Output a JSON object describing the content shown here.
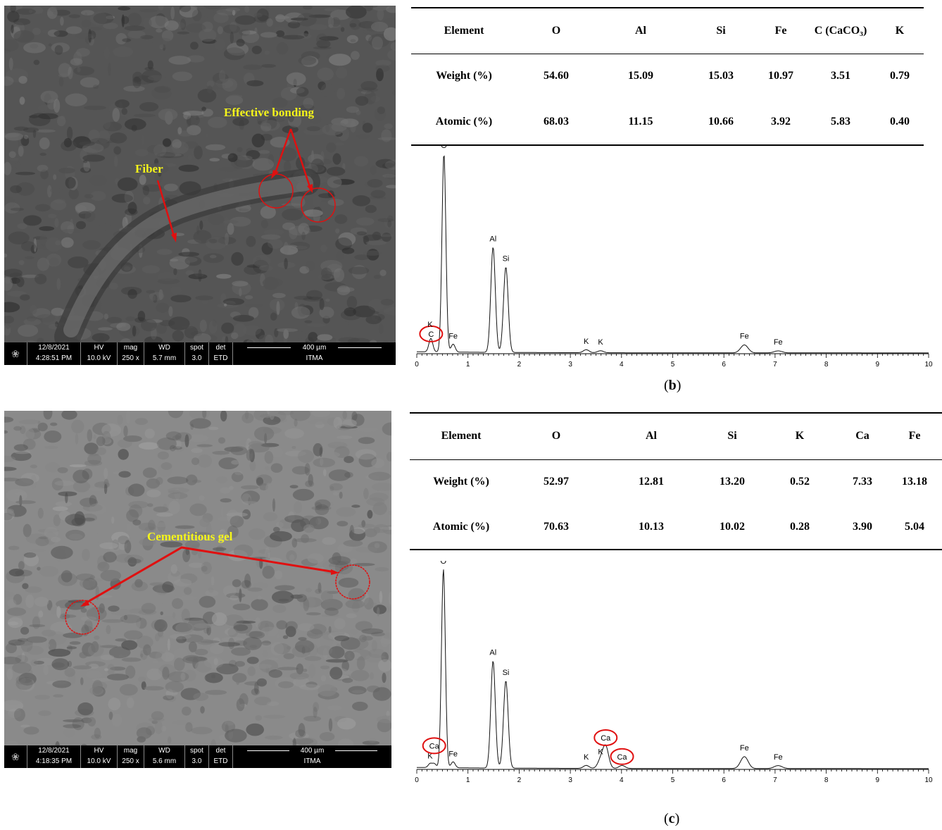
{
  "panel_b": {
    "caption_letter": "b",
    "sem": {
      "date": "12/8/2021",
      "time": "4:28:51 PM",
      "hv_label": "HV",
      "hv": "10.0 kV",
      "mag_label": "mag",
      "mag": "250 x",
      "wd_label": "WD",
      "wd": "5.7 mm",
      "spot_label": "spot",
      "spot": "3.0",
      "det_label": "det",
      "det": "ETD",
      "scale": "400 µm",
      "lab": "ITMA",
      "annotations": [
        "Effective bonding",
        "Fiber"
      ]
    },
    "table": {
      "headers": [
        "Element",
        "O",
        "Al",
        "Si",
        "Fe",
        "C (CaCO₃)",
        "K"
      ],
      "rows": [
        [
          "Weight (%)",
          "54.60",
          "15.09",
          "15.03",
          "10.97",
          "3.51",
          "0.79"
        ],
        [
          "Atomic (%)",
          "68.03",
          "11.15",
          "10.66",
          "3.92",
          "5.83",
          "0.40"
        ]
      ]
    },
    "spectrum": {
      "x_ticks": [
        "0",
        "1",
        "2",
        "3",
        "4",
        "5",
        "6",
        "7",
        "8",
        "9",
        "10"
      ],
      "xlim": [
        0,
        10
      ],
      "peaks": [
        {
          "label": "C",
          "x": 0.28,
          "h": 0.05,
          "circled": true
        },
        {
          "label": "K",
          "x": 0.26,
          "h": 0.02,
          "circled": false
        },
        {
          "label": "O",
          "x": 0.53,
          "h": 1.0,
          "circled": false
        },
        {
          "label": "Fe",
          "x": 0.71,
          "h": 0.04,
          "circled": false
        },
        {
          "label": "Al",
          "x": 1.49,
          "h": 0.53,
          "circled": false
        },
        {
          "label": "Si",
          "x": 1.74,
          "h": 0.43,
          "circled": false
        },
        {
          "label": "K",
          "x": 3.31,
          "h": 0.015,
          "circled": false
        },
        {
          "label": "K",
          "x": 3.59,
          "h": 0.01,
          "circled": false
        },
        {
          "label": "Fe",
          "x": 6.4,
          "h": 0.04,
          "circled": false
        },
        {
          "label": "Fe",
          "x": 7.06,
          "h": 0.01,
          "circled": false
        }
      ]
    }
  },
  "panel_c": {
    "caption_letter": "c",
    "sem": {
      "date": "12/8/2021",
      "time": "4:18:35 PM",
      "hv_label": "HV",
      "hv": "10.0 kV",
      "mag_label": "mag",
      "mag": "250 x",
      "wd_label": "WD",
      "wd": "5.6 mm",
      "spot_label": "spot",
      "spot": "3.0",
      "det_label": "det",
      "det": "ETD",
      "scale": "400 µm",
      "lab": "ITMA",
      "annotations": [
        "Cementitious gel"
      ]
    },
    "table": {
      "headers": [
        "Element",
        "O",
        "Al",
        "Si",
        "K",
        "Ca",
        "Fe"
      ],
      "rows": [
        [
          "Weight (%)",
          "52.97",
          "12.81",
          "13.20",
          "0.52",
          "7.33",
          "13.18"
        ],
        [
          "Atomic (%)",
          "70.63",
          "10.13",
          "10.02",
          "0.28",
          "3.90",
          "5.04"
        ]
      ]
    },
    "spectrum": {
      "x_ticks": [
        "0",
        "1",
        "2",
        "3",
        "4",
        "5",
        "6",
        "7",
        "8",
        "9",
        "10"
      ],
      "xlim": [
        0,
        10
      ],
      "peaks": [
        {
          "label": "K",
          "x": 0.26,
          "h": 0.02,
          "circled": false
        },
        {
          "label": "Ca",
          "x": 0.34,
          "h": 0.02,
          "circled": true
        },
        {
          "label": "O",
          "x": 0.52,
          "h": 1.0,
          "circled": false
        },
        {
          "label": "Fe",
          "x": 0.71,
          "h": 0.03,
          "circled": false
        },
        {
          "label": "Al",
          "x": 1.49,
          "h": 0.54,
          "circled": false
        },
        {
          "label": "Si",
          "x": 1.74,
          "h": 0.44,
          "circled": false
        },
        {
          "label": "K",
          "x": 3.31,
          "h": 0.015,
          "circled": false
        },
        {
          "label": "K",
          "x": 3.59,
          "h": 0.04,
          "circled": false
        },
        {
          "label": "Ca",
          "x": 3.69,
          "h": 0.11,
          "circled": true
        },
        {
          "label": "Ca",
          "x": 4.01,
          "h": 0.015,
          "circled": true
        },
        {
          "label": "Fe",
          "x": 6.4,
          "h": 0.06,
          "circled": false
        },
        {
          "label": "Fe",
          "x": 7.06,
          "h": 0.015,
          "circled": false
        }
      ]
    }
  },
  "colors": {
    "annotation_yellow": "#f5f51a",
    "marker_red": "#e01010"
  }
}
